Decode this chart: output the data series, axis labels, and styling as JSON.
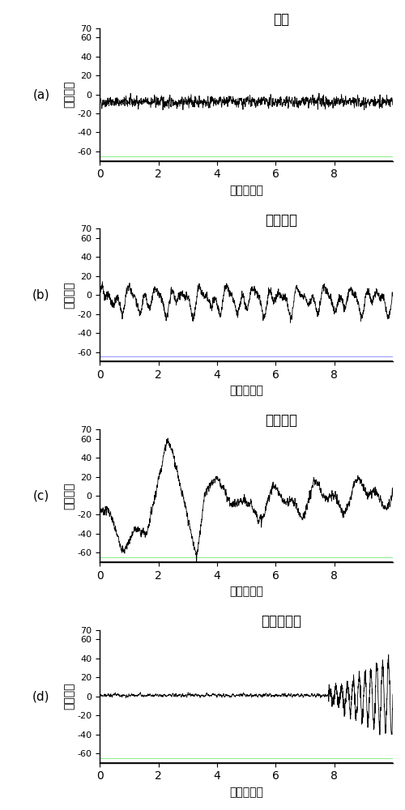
{
  "titles": [
    "苏醒",
    "浅度催眠",
    "深度催眠",
    "极深度催眠"
  ],
  "panel_labels": [
    "(a)",
    "(b)",
    "(c)",
    "(d)"
  ],
  "xlabel": "时间（秒）",
  "ylabel": "振幅微波",
  "ylim": [
    -70,
    70
  ],
  "yticks": [
    -60,
    -40,
    -20,
    0,
    20,
    40,
    60,
    70
  ],
  "xlim": [
    0,
    10
  ],
  "xticks": [
    0,
    2,
    4,
    6,
    8
  ],
  "hline_y": -65,
  "hline_color_b": "#9999ff",
  "hline_color_acd": "#90ee90",
  "line_color": "#000000",
  "bg_color": "#ffffff",
  "n_points": 2000
}
